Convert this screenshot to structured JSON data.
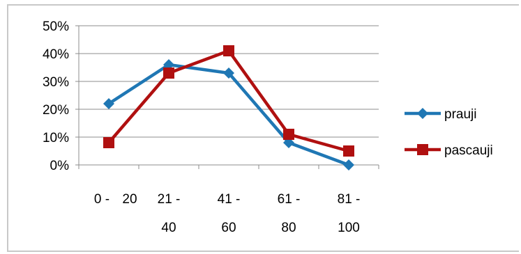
{
  "chart_data": {
    "type": "line",
    "categories": [
      [
        "0 -",
        "20"
      ],
      [
        "21 -",
        "40"
      ],
      [
        "41 -",
        "60"
      ],
      [
        "61 -",
        "80"
      ],
      [
        "81 -",
        "100"
      ]
    ],
    "series": [
      {
        "name": "prauji",
        "values": [
          22,
          36,
          33,
          8,
          0
        ],
        "color": "#1f77b4",
        "marker": "diamond"
      },
      {
        "name": "pascauji",
        "values": [
          8,
          33,
          41,
          11,
          5
        ],
        "color": "#b01010",
        "marker": "square"
      }
    ],
    "ylim": [
      0,
      50
    ],
    "yticks": [
      "0%",
      "10%",
      "20%",
      "30%",
      "40%",
      "50%"
    ],
    "grid": true,
    "legend": "right"
  }
}
